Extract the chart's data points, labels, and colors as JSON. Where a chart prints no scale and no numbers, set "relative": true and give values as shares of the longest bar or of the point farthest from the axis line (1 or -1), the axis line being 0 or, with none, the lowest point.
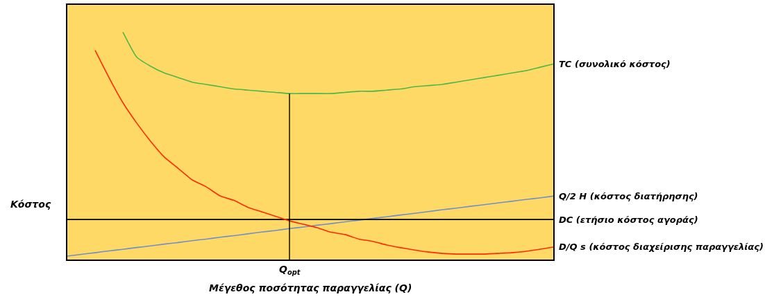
{
  "chart_data": {
    "type": "line",
    "relative": true,
    "xlabel": "Μέγεθος ποσότητας παραγγελίας (Q)",
    "ylabel": "Κόστος",
    "categories": [
      null,
      null,
      null,
      null,
      null,
      null,
      null,
      null,
      null,
      null,
      null,
      null,
      null,
      null,
      null,
      null,
      null,
      null,
      null,
      null,
      null,
      null,
      null,
      null,
      null,
      null,
      null,
      null,
      null,
      null,
      null,
      null,
      null,
      null,
      null,
      null
    ],
    "annotations": [
      "Q$_{opt}$"
    ],
    "tick_labels": false,
    "series": [
      {
        "name": "TC (συνολικό κόστος)",
        "color": "#4cb848",
        "values": [
          null,
          null,
          null,
          null,
          1.0,
          0.89,
          0.85,
          0.82,
          0.8,
          0.78,
          0.77,
          0.76,
          0.75,
          0.745,
          0.74,
          0.735,
          0.73,
          0.73,
          0.73,
          0.73,
          0.735,
          0.74,
          0.74,
          0.745,
          0.75,
          0.76,
          0.765,
          0.77,
          0.78,
          0.79,
          0.8,
          0.81,
          0.82,
          0.83,
          0.845,
          0.86
        ]
      },
      {
        "name": "Q/2 H (κόστος διατήρησης)",
        "color": "#6f8fc9",
        "values": [
          0.015,
          0.023,
          0.03,
          0.038,
          0.045,
          0.053,
          0.06,
          0.068,
          0.075,
          0.083,
          0.09,
          0.098,
          0.105,
          0.113,
          0.121,
          0.128,
          0.136,
          0.143,
          0.151,
          0.158,
          0.166,
          0.173,
          0.181,
          0.188,
          0.196,
          0.203,
          0.211,
          0.219,
          0.226,
          0.234,
          0.241,
          0.249,
          0.256,
          0.264,
          0.271,
          0.279
        ]
      },
      {
        "name": "DC (ετήσιο κόστος αγοράς)",
        "color": "#000000",
        "values": [
          0.176,
          0.176,
          0.176,
          0.176,
          0.176,
          0.176,
          0.176,
          0.176,
          0.176,
          0.176,
          0.176,
          0.176,
          0.176,
          0.176,
          0.176,
          0.176,
          0.176,
          0.176,
          0.176,
          0.176,
          0.176,
          0.176,
          0.176,
          0.176,
          0.176,
          0.176,
          0.176,
          0.176,
          0.176,
          0.176,
          0.176,
          0.176,
          0.176,
          0.176,
          0.176,
          0.176
        ]
      },
      {
        "name": "D/Q s (κόστος διαχείρισης παραγγελίας)",
        "color": "#ff2a00",
        "values": [
          null,
          null,
          0.92,
          0.8,
          0.69,
          0.6,
          0.52,
          0.45,
          0.4,
          0.35,
          0.32,
          0.28,
          0.26,
          0.23,
          0.21,
          0.19,
          0.17,
          0.155,
          0.14,
          0.12,
          0.11,
          0.09,
          0.08,
          0.064,
          0.052,
          0.042,
          0.033,
          0.027,
          0.024,
          0.024,
          0.024,
          0.027,
          0.03,
          0.036,
          0.045,
          0.055
        ]
      }
    ],
    "grid": false,
    "legend": false,
    "marker": "none",
    "line_style": "solid"
  }
}
